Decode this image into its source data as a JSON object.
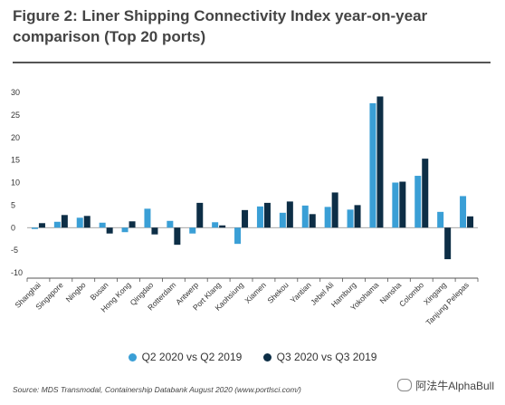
{
  "header": {
    "title": "Figure 2: Liner Shipping Connectivity Index year-on-year comparison (Top 20 ports)"
  },
  "colors": {
    "series_q2": "#3a9fd6",
    "series_q3": "#0d2e46",
    "axis": "#555555",
    "grid_zero": "#888888"
  },
  "chart_data": {
    "type": "bar",
    "title": "Figure 2: Liner Shipping Connectivity Index year-on-year comparison (Top 20 ports)",
    "categories": [
      "Shanghai",
      "Singapore",
      "Ningbo",
      "Busan",
      "Hong Kong",
      "Qingdao",
      "Rotterdam",
      "Antwerp",
      "Port Klang",
      "Kaohsiung",
      "Xiamen",
      "Shekou",
      "Yantian",
      "Jebel Ali",
      "Hamburg",
      "Yokohama",
      "Nansha",
      "Colombo",
      "Xingang",
      "Tanjung Pelepas"
    ],
    "series": [
      {
        "name": "Q2 2020 vs Q2 2019",
        "values": [
          -0.3,
          1.3,
          2.2,
          1.1,
          -1.0,
          4.2,
          1.5,
          -1.3,
          1.2,
          -3.6,
          4.7,
          3.3,
          4.9,
          4.6,
          4.0,
          27.6,
          10.0,
          11.5,
          3.5,
          7.0
        ]
      },
      {
        "name": "Q3 2020 vs Q3 2019",
        "values": [
          1.0,
          2.8,
          2.6,
          -1.3,
          1.4,
          -1.5,
          -3.8,
          5.5,
          0.5,
          3.9,
          5.5,
          5.8,
          3.0,
          7.8,
          5.0,
          29.1,
          10.2,
          15.3,
          -7.0,
          2.5
        ]
      }
    ],
    "ylim": [
      -10,
      30
    ],
    "yticks": [
      -10,
      -5,
      0,
      5,
      10,
      15,
      20,
      25,
      30
    ],
    "xlabel": "",
    "ylabel": "",
    "grid": false,
    "legend_position": "bottom"
  },
  "legend": {
    "q2_label": "Q2 2020 vs Q2 2019",
    "q3_label": "Q3 2020 vs Q3 2019"
  },
  "footer": {
    "source": "Source: MDS Transmodal, Containership Databank August 2020 (www.portlsci.com/)",
    "watermark": "阿法牛AlphaBull"
  }
}
